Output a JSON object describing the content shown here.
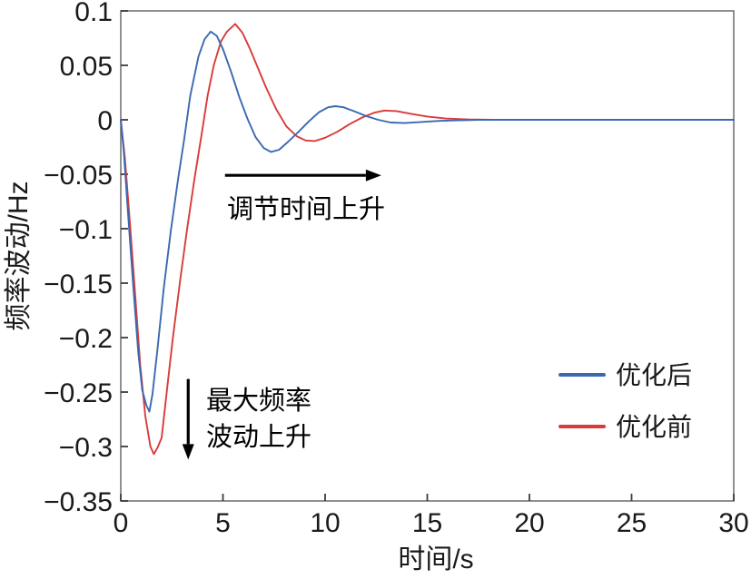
{
  "chart_data": {
    "type": "line",
    "title": "",
    "xlabel": "时间/s",
    "ylabel": "频率波动/Hz",
    "xlim": [
      0,
      30
    ],
    "ylim": [
      -0.35,
      0.1
    ],
    "grid": false,
    "frame_box": true,
    "x_ticks": [
      0,
      5,
      10,
      15,
      20,
      25,
      30
    ],
    "x_tick_labels": [
      "0",
      "5",
      "10",
      "15",
      "20",
      "25",
      "30"
    ],
    "y_ticks": [
      0.1,
      0.05,
      0,
      -0.05,
      -0.1,
      -0.15,
      -0.2,
      -0.25,
      -0.3,
      -0.35
    ],
    "y_tick_labels": [
      "0.1",
      "0.05",
      "0",
      "−0.05",
      "−0.1",
      "−0.15",
      "−0.2",
      "−0.25",
      "−0.3",
      "−0.35"
    ],
    "colors": {
      "axis": "#6b6b6b",
      "tick": "#3c3c3c",
      "text": "#1a1a1a",
      "annotation": "#000000",
      "blue_series": "#3a69b1",
      "red_series": "#d93b3b"
    },
    "legend": {
      "position": "lower-right",
      "entries": [
        {
          "label": "优化后",
          "color": "#3a69b1"
        },
        {
          "label": "优化前",
          "color": "#d93b3b"
        }
      ]
    },
    "series": [
      {
        "name": "优化前",
        "color": "#d93b3b",
        "points": [
          [
            0,
            0
          ],
          [
            0.2,
            -0.035
          ],
          [
            0.45,
            -0.095
          ],
          [
            0.7,
            -0.16
          ],
          [
            0.95,
            -0.225
          ],
          [
            1.2,
            -0.272
          ],
          [
            1.45,
            -0.3
          ],
          [
            1.62,
            -0.307
          ],
          [
            1.8,
            -0.301
          ],
          [
            2.0,
            -0.292
          ],
          [
            2.25,
            -0.25
          ],
          [
            2.55,
            -0.2
          ],
          [
            2.9,
            -0.148
          ],
          [
            3.25,
            -0.1
          ],
          [
            3.6,
            -0.055
          ],
          [
            3.95,
            -0.014
          ],
          [
            4.25,
            0.022
          ],
          [
            4.55,
            0.05
          ],
          [
            4.9,
            0.072
          ],
          [
            5.2,
            0.081
          ],
          [
            5.6,
            0.088
          ],
          [
            5.95,
            0.08
          ],
          [
            6.3,
            0.066
          ],
          [
            6.7,
            0.048
          ],
          [
            7.1,
            0.03
          ],
          [
            7.6,
            0.01
          ],
          [
            8.1,
            -0.006
          ],
          [
            8.6,
            -0.015
          ],
          [
            9.05,
            -0.019
          ],
          [
            9.5,
            -0.0195
          ],
          [
            10.0,
            -0.0165
          ],
          [
            10.6,
            -0.011
          ],
          [
            11.2,
            -0.004
          ],
          [
            11.8,
            0.002
          ],
          [
            12.4,
            0.0065
          ],
          [
            12.9,
            0.0085
          ],
          [
            13.5,
            0.008
          ],
          [
            14.2,
            0.0055
          ],
          [
            15.0,
            0.003
          ],
          [
            15.9,
            0.0012
          ],
          [
            17.0,
            0.0003
          ],
          [
            18.2,
            0
          ],
          [
            20,
            0
          ],
          [
            22,
            0
          ],
          [
            24,
            0
          ],
          [
            26,
            0
          ],
          [
            28,
            0
          ],
          [
            30,
            0
          ]
        ]
      },
      {
        "name": "优化后",
        "color": "#3a69b1",
        "points": [
          [
            0,
            0
          ],
          [
            0.15,
            -0.03
          ],
          [
            0.35,
            -0.085
          ],
          [
            0.6,
            -0.15
          ],
          [
            0.85,
            -0.212
          ],
          [
            1.05,
            -0.248
          ],
          [
            1.25,
            -0.262
          ],
          [
            1.4,
            -0.268
          ],
          [
            1.55,
            -0.252
          ],
          [
            1.8,
            -0.21
          ],
          [
            2.1,
            -0.155
          ],
          [
            2.45,
            -0.102
          ],
          [
            2.8,
            -0.055
          ],
          [
            3.1,
            -0.018
          ],
          [
            3.4,
            0.022
          ],
          [
            3.8,
            0.058
          ],
          [
            4.1,
            0.074
          ],
          [
            4.4,
            0.081
          ],
          [
            4.7,
            0.077
          ],
          [
            5.0,
            0.065
          ],
          [
            5.4,
            0.044
          ],
          [
            5.8,
            0.021
          ],
          [
            6.2,
            0.001
          ],
          [
            6.6,
            -0.016
          ],
          [
            7.0,
            -0.026
          ],
          [
            7.35,
            -0.0295
          ],
          [
            7.75,
            -0.0275
          ],
          [
            8.2,
            -0.02
          ],
          [
            8.7,
            -0.011
          ],
          [
            9.2,
            -0.0015
          ],
          [
            9.7,
            0.007
          ],
          [
            10.15,
            0.0115
          ],
          [
            10.5,
            0.0125
          ],
          [
            10.9,
            0.0115
          ],
          [
            11.4,
            0.008
          ],
          [
            12.0,
            0.0035
          ],
          [
            12.6,
            0
          ],
          [
            13.2,
            -0.0025
          ],
          [
            13.9,
            -0.003
          ],
          [
            14.7,
            -0.002
          ],
          [
            15.6,
            -0.001
          ],
          [
            16.5,
            -0.0005
          ],
          [
            17.5,
            0
          ],
          [
            19,
            0
          ],
          [
            21,
            0
          ],
          [
            23,
            0
          ],
          [
            25,
            0
          ],
          [
            27,
            0
          ],
          [
            30,
            0
          ]
        ]
      }
    ],
    "annotations": [
      {
        "id": "settling-time",
        "text_lines": [
          "调节时间上升"
        ],
        "arrow": {
          "from": [
            5.1,
            -0.051
          ],
          "to": [
            12.75,
            -0.051
          ]
        },
        "text_pos": [
          5.2,
          -0.09
        ]
      },
      {
        "id": "max-deviation",
        "text_lines": [
          "最大频率",
          "波动上升"
        ],
        "arrow": {
          "from": [
            3.3,
            -0.238
          ],
          "to": [
            3.3,
            -0.312
          ]
        },
        "text_pos": [
          4.18,
          -0.2658
        ],
        "line_step_v": 0.0333
      }
    ]
  }
}
